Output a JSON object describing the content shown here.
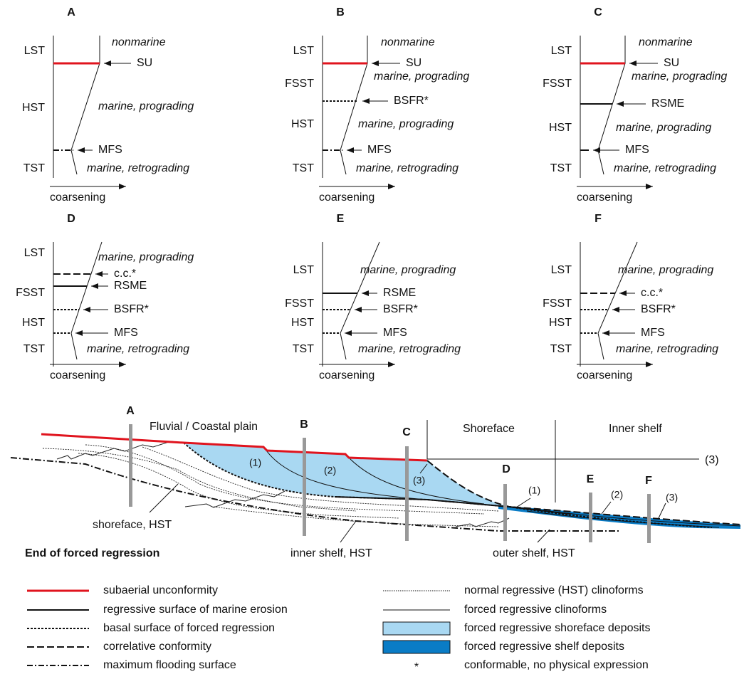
{
  "panels": [
    {
      "letter": "A",
      "tracts": [
        "LST",
        "HST",
        "TST"
      ],
      "facies": [
        "nonmarine",
        "marine, prograding",
        "marine, retrograding"
      ],
      "surfaces": [
        "SU",
        "MFS"
      ],
      "axis_label": "coarsening"
    },
    {
      "letter": "B",
      "tracts": [
        "LST",
        "FSST",
        "HST",
        "TST"
      ],
      "facies": [
        "nonmarine",
        "marine, prograding",
        "marine, prograding",
        "marine, retrograding"
      ],
      "surfaces": [
        "SU",
        "BSFR*",
        "MFS"
      ],
      "axis_label": "coarsening"
    },
    {
      "letter": "C",
      "tracts": [
        "LST",
        "FSST",
        "HST",
        "TST"
      ],
      "facies": [
        "nonmarine",
        "marine, prograding",
        "marine, prograding",
        "marine, retrograding"
      ],
      "surfaces": [
        "SU",
        "RSME",
        "MFS"
      ],
      "axis_label": "coarsening"
    },
    {
      "letter": "D",
      "tracts": [
        "LST",
        "FSST",
        "HST",
        "TST"
      ],
      "facies": [
        "marine, prograding",
        "marine, retrograding"
      ],
      "surfaces": [
        "c.c.*",
        "RSME",
        "BSFR*",
        "MFS"
      ],
      "axis_label": "coarsening"
    },
    {
      "letter": "E",
      "tracts": [
        "LST",
        "FSST",
        "HST",
        "TST"
      ],
      "facies": [
        "marine, prograding",
        "marine, retrograding"
      ],
      "surfaces": [
        "RSME",
        "BSFR*",
        "MFS"
      ],
      "axis_label": "coarsening"
    },
    {
      "letter": "F",
      "tracts": [
        "LST",
        "FSST",
        "HST",
        "TST"
      ],
      "facies": [
        "marine, prograding",
        "marine, retrograding"
      ],
      "surfaces": [
        "c.c.*",
        "BSFR*",
        "MFS"
      ],
      "axis_label": "coarsening"
    }
  ],
  "cross_section": {
    "title": "End of forced regression",
    "zones": [
      "Fluvial / Coastal plain",
      "Shoreface",
      "Inner shelf"
    ],
    "wells": [
      "A",
      "B",
      "C",
      "D",
      "E",
      "F"
    ],
    "clinoforms": [
      "(1)",
      "(2)",
      "(3)",
      "(1)",
      "(2)",
      "(3)"
    ],
    "reference": "(3)",
    "deposits": [
      "shoreface, HST",
      "inner shelf, HST",
      "outer shelf, HST"
    ]
  },
  "legend": {
    "left": [
      "subaerial unconformity",
      "regressive surface of marine erosion",
      "basal surface of forced regression",
      "correlative conformity",
      "maximum flooding surface"
    ],
    "right": [
      "normal regressive (HST) clinoforms",
      "forced regressive clinoforms",
      "forced regressive shoreface deposits",
      "forced regressive shelf deposits",
      "conformable, no physical expression"
    ],
    "symbol": "*"
  }
}
